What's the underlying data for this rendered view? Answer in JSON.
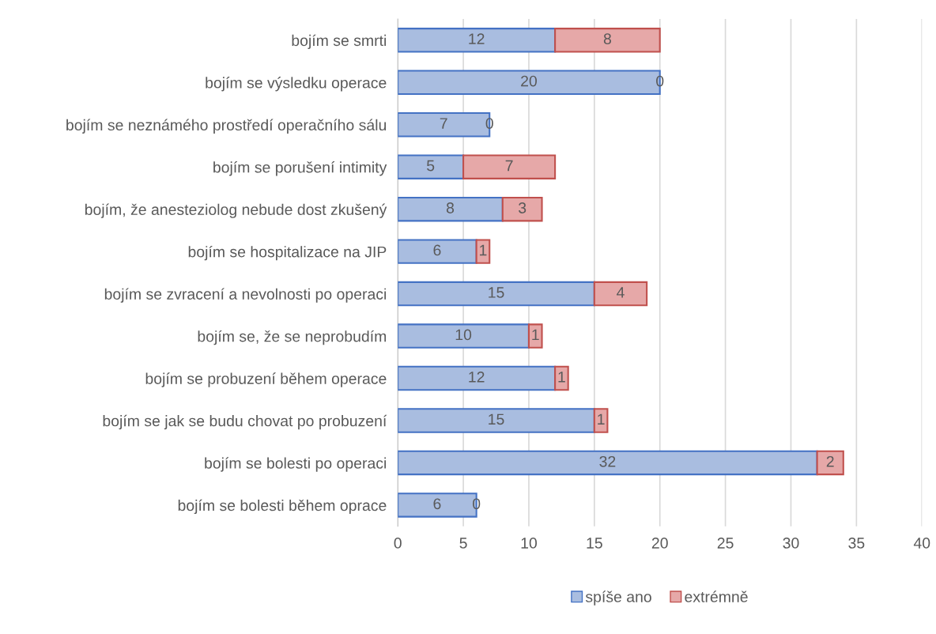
{
  "chart_data": {
    "type": "bar",
    "orientation": "horizontal",
    "stacked": true,
    "data_labels": true,
    "categories": [
      "bojím se smrti",
      "bojím se výsledku operace",
      "bojím se neznámého prostředí operačního sálu",
      "bojím se porušení intimity",
      "bojím, že anesteziolog nebude dost zkušený",
      "bojím se hospitalizace na JIP",
      "bojím se zvracení a nevolnosti po operaci",
      "bojím se, že se neprobudím",
      "bojím se probuzení během operace",
      "bojím se jak se budu chovat po probuzení",
      "bojím se bolesti po operaci",
      "bojím se bolesti během oprace"
    ],
    "series": [
      {
        "name": "spíše ano",
        "color": "#a9bde0",
        "values": [
          12,
          20,
          7,
          5,
          8,
          6,
          15,
          10,
          12,
          15,
          32,
          6
        ]
      },
      {
        "name": "extrémně",
        "color": "#e6a8a8",
        "values": [
          8,
          0,
          0,
          7,
          3,
          1,
          4,
          1,
          1,
          1,
          2,
          0
        ]
      }
    ],
    "xlim": [
      0,
      40
    ],
    "xticks": [
      0,
      5,
      10,
      15,
      20,
      25,
      30,
      35,
      40
    ],
    "grid": "x",
    "legend": "bottom"
  }
}
